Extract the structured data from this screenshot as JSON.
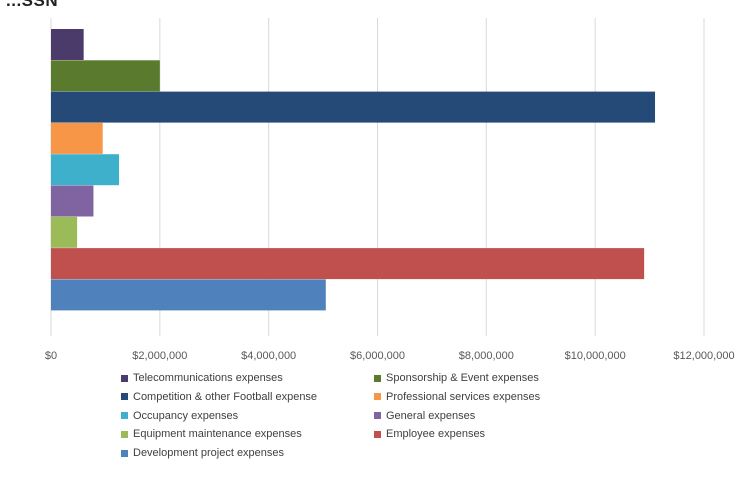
{
  "chart_data": {
    "type": "bar",
    "orientation": "horizontal",
    "title": "...SSN",
    "xlim": [
      0,
      12000000
    ],
    "x_ticks": [
      "$0",
      "$2,000,000",
      "$4,000,000",
      "$6,000,000",
      "$8,000,000",
      "$10,000,000",
      "$12,000,000"
    ],
    "grid": true,
    "legend_position": "bottom",
    "series": [
      {
        "name": "Telecommunications expenses",
        "value": 600000,
        "color": "#4b3b6b"
      },
      {
        "name": "Sponsorship & Event expenses",
        "value": 2000000,
        "color": "#5a7a2e"
      },
      {
        "name": "Competition & other Football expense",
        "value": 11100000,
        "color": "#254a78"
      },
      {
        "name": "Professional services expenses",
        "value": 950000,
        "color": "#f79646"
      },
      {
        "name": "Occupancy expenses",
        "value": 1250000,
        "color": "#3fb0cc"
      },
      {
        "name": "General expenses",
        "value": 780000,
        "color": "#8064a2"
      },
      {
        "name": "Equipment maintenance expenses",
        "value": 480000,
        "color": "#9bbb59"
      },
      {
        "name": "Employee expenses",
        "value": 10900000,
        "color": "#c0504d"
      },
      {
        "name": "Development project expenses",
        "value": 5050000,
        "color": "#4f81bd"
      }
    ]
  }
}
